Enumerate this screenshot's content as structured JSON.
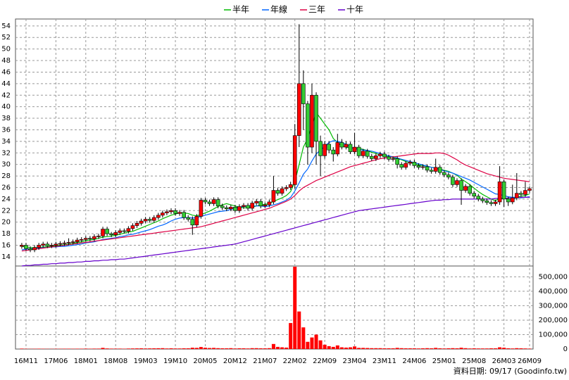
{
  "chart_data": {
    "type": "candlestick",
    "categories": [
      null,
      "16M11",
      null,
      null,
      null,
      null,
      null,
      null,
      "17M06",
      null,
      null,
      null,
      null,
      null,
      null,
      "18M01",
      null,
      null,
      null,
      null,
      null,
      null,
      "18M08",
      null,
      null,
      null,
      null,
      null,
      null,
      "19M03",
      null,
      null,
      null,
      null,
      null,
      null,
      "19M10",
      null,
      null,
      null,
      null,
      null,
      null,
      "20M05",
      null,
      null,
      null,
      null,
      null,
      null,
      "20M12",
      null,
      null,
      null,
      null,
      null,
      null,
      "21M07",
      null,
      null,
      null,
      null,
      null,
      null,
      "22M02",
      null,
      null,
      null,
      null,
      null,
      null,
      "22M09",
      null,
      null,
      null,
      null,
      null,
      null,
      "23M04",
      null,
      null,
      null,
      null,
      null,
      null,
      "23M11",
      null,
      null,
      null,
      null,
      null,
      null,
      "24M06",
      null,
      null,
      null,
      null,
      null,
      null,
      "25M01",
      null,
      null,
      null,
      null,
      null,
      null,
      "25M08",
      null,
      null,
      null,
      null,
      null,
      null,
      "26M03",
      null,
      null,
      null,
      null,
      null,
      "26M09"
    ],
    "open": [
      15.8,
      16.0,
      15.4,
      15.2,
      15.6,
      16.0,
      16.2,
      15.9,
      16.0,
      16.2,
      16.3,
      16.4,
      16.5,
      16.6,
      16.9,
      17.0,
      17.2,
      17.1,
      17.5,
      17.6,
      18.8,
      18.0,
      17.8,
      18.2,
      18.5,
      18.4,
      18.9,
      19.4,
      19.8,
      20.2,
      20.5,
      20.3,
      20.8,
      21.2,
      21.6,
      21.8,
      22.0,
      21.5,
      21.7,
      20.8,
      20.5,
      19.5,
      21.0,
      23.8,
      23.5,
      23.2,
      23.9,
      22.8,
      22.5,
      22.3,
      22.6,
      22.0,
      22.7,
      22.9,
      22.4,
      23.3,
      23.6,
      22.8,
      23.0,
      23.5,
      25.5,
      25.0,
      25.8,
      26.0,
      26.5,
      35.0,
      44.0,
      40.5,
      33.0,
      42.0,
      34.0,
      31.5,
      33.5,
      32.5,
      31.8,
      33.8,
      33.0,
      33.5,
      32.2,
      33.0,
      31.5,
      32.3,
      31.4,
      31.0,
      31.5,
      31.8,
      31.3,
      30.9,
      31.0,
      30.0,
      29.5,
      30.2,
      30.4,
      29.8,
      29.5,
      29.6,
      29.0,
      28.8,
      29.5,
      28.6,
      28.2,
      27.8,
      26.5,
      27.2,
      25.5,
      26.2,
      25.0,
      24.5,
      24.0,
      23.7,
      23.4,
      23.2,
      23.5,
      27.0,
      24.0,
      23.5,
      24.2,
      25.0,
      24.8,
      25.5
    ],
    "high": [
      16.4,
      16.4,
      15.8,
      16.0,
      16.4,
      16.6,
      16.6,
      16.4,
      16.6,
      16.7,
      16.8,
      17.2,
      17.0,
      17.3,
      17.4,
      17.6,
      17.6,
      17.9,
      18.0,
      19.2,
      19.2,
      18.3,
      18.6,
      18.9,
      18.9,
      19.3,
      19.8,
      20.2,
      20.6,
      20.9,
      20.9,
      21.2,
      21.6,
      22.0,
      22.2,
      22.4,
      22.4,
      22.1,
      22.1,
      21.2,
      21.0,
      21.4,
      24.2,
      24.2,
      23.9,
      24.3,
      24.3,
      23.2,
      22.9,
      23.0,
      23.0,
      23.1,
      23.3,
      23.3,
      23.7,
      24.0,
      24.0,
      23.4,
      23.9,
      28.0,
      25.9,
      26.2,
      26.4,
      27.0,
      37.0,
      54.3,
      46.3,
      41.0,
      44.0,
      42.5,
      35.0,
      34.0,
      34.0,
      33.0,
      35.3,
      34.4,
      34.0,
      33.9,
      35.5,
      33.4,
      32.7,
      32.7,
      31.8,
      31.9,
      32.2,
      32.2,
      31.7,
      31.4,
      31.4,
      30.4,
      30.6,
      30.8,
      30.8,
      30.2,
      30.0,
      30.0,
      29.4,
      31.0,
      29.9,
      29.0,
      28.6,
      28.2,
      27.6,
      27.6,
      26.6,
      26.6,
      25.4,
      24.9,
      24.4,
      24.1,
      23.8,
      23.9,
      29.7,
      27.4,
      24.4,
      26.5,
      28.5,
      25.4,
      27.0,
      26.2
    ],
    "low": [
      15.4,
      15.0,
      14.8,
      14.8,
      15.2,
      15.6,
      15.5,
      15.5,
      15.6,
      15.8,
      15.9,
      16.0,
      16.1,
      16.2,
      16.5,
      16.6,
      16.7,
      16.7,
      17.1,
      17.2,
      17.6,
      17.4,
      17.4,
      17.8,
      18.0,
      18.0,
      18.5,
      19.0,
      19.4,
      19.8,
      19.9,
      19.9,
      20.4,
      20.8,
      21.2,
      21.4,
      21.1,
      21.1,
      20.4,
      20.1,
      17.8,
      19.1,
      20.6,
      23.1,
      22.8,
      22.8,
      22.4,
      22.1,
      21.9,
      21.9,
      21.6,
      21.6,
      22.3,
      22.0,
      22.0,
      22.9,
      22.4,
      22.4,
      22.6,
      23.1,
      24.6,
      24.6,
      25.4,
      25.6,
      25.8,
      33.0,
      36.0,
      30.0,
      32.0,
      30.0,
      28.0,
      31.0,
      32.0,
      30.5,
      31.4,
      32.6,
      32.6,
      31.8,
      31.8,
      31.1,
      31.1,
      31.0,
      30.6,
      30.6,
      31.1,
      30.9,
      30.5,
      30.5,
      29.3,
      29.1,
      29.1,
      29.8,
      29.4,
      29.1,
      29.1,
      28.6,
      28.4,
      28.4,
      28.2,
      27.8,
      27.4,
      26.1,
      26.1,
      23.0,
      25.1,
      24.6,
      24.1,
      23.6,
      23.3,
      23.0,
      22.8,
      22.8,
      23.0,
      22.6,
      22.8,
      23.1,
      23.8,
      24.4,
      24.4,
      25.1
    ],
    "close": [
      16.0,
      15.4,
      15.2,
      15.6,
      16.0,
      16.2,
      15.9,
      16.0,
      16.2,
      16.3,
      16.4,
      16.5,
      16.6,
      16.9,
      17.0,
      17.2,
      17.1,
      17.5,
      17.6,
      18.8,
      18.0,
      17.8,
      18.2,
      18.5,
      18.4,
      18.9,
      19.4,
      19.8,
      20.2,
      20.5,
      20.3,
      20.8,
      21.2,
      21.6,
      21.8,
      22.0,
      21.5,
      21.7,
      20.8,
      20.5,
      19.5,
      21.0,
      23.8,
      23.5,
      23.2,
      23.9,
      22.8,
      22.5,
      22.3,
      22.6,
      22.0,
      22.7,
      22.9,
      22.4,
      23.3,
      23.6,
      22.8,
      23.0,
      23.5,
      25.5,
      25.0,
      25.8,
      26.0,
      26.5,
      35.0,
      44.0,
      40.5,
      33.0,
      42.0,
      34.0,
      31.5,
      33.5,
      32.5,
      31.8,
      33.8,
      33.0,
      33.5,
      32.2,
      33.0,
      31.5,
      32.3,
      31.4,
      31.0,
      31.5,
      31.8,
      31.3,
      30.9,
      31.0,
      30.0,
      29.5,
      30.2,
      30.4,
      29.8,
      29.5,
      29.6,
      29.0,
      28.8,
      29.5,
      28.6,
      28.2,
      27.8,
      26.5,
      27.2,
      25.5,
      26.2,
      25.0,
      24.5,
      24.0,
      23.7,
      23.4,
      23.2,
      23.5,
      27.0,
      24.0,
      23.5,
      24.2,
      25.0,
      24.8,
      25.5,
      25.8
    ],
    "up_color": "#ff0000",
    "down_color": "#33cc33",
    "ylim": [
      12.4,
      55.2
    ],
    "yticks": [
      14,
      16,
      18,
      20,
      22,
      24,
      26,
      28,
      30,
      32,
      34,
      36,
      38,
      40,
      42,
      44,
      46,
      48,
      50,
      52,
      54
    ],
    "grid": true,
    "series": [
      {
        "name": "半年",
        "color": "#00bb00",
        "values": [
          15.8,
          15.7,
          15.6,
          15.6,
          15.6,
          15.7,
          15.7,
          15.8,
          15.9,
          16.0,
          16.1,
          16.2,
          16.3,
          16.5,
          16.6,
          16.8,
          16.9,
          17.0,
          17.2,
          17.4,
          17.5,
          17.6,
          17.7,
          17.9,
          18.1,
          18.3,
          18.4,
          18.7,
          19.0,
          19.3,
          19.6,
          19.9,
          20.2,
          20.6,
          20.9,
          21.2,
          21.4,
          21.6,
          21.6,
          21.5,
          21.2,
          21.1,
          21.3,
          21.6,
          21.9,
          22.3,
          22.7,
          23.0,
          23.2,
          23.0,
          22.8,
          22.6,
          22.5,
          22.5,
          22.6,
          22.8,
          23.0,
          23.1,
          23.2,
          23.6,
          23.9,
          24.2,
          24.6,
          25.3,
          27.0,
          30.0,
          33.0,
          34.5,
          36.7,
          39.0,
          38.0,
          37.0,
          36.0,
          34.5,
          33.8,
          33.2,
          33.0,
          32.8,
          32.9,
          32.8,
          32.6,
          32.4,
          32.1,
          31.9,
          31.6,
          31.5,
          31.3,
          31.2,
          31.0,
          30.8,
          30.5,
          30.3,
          30.1,
          29.9,
          29.8,
          29.7,
          29.5,
          29.4,
          29.2,
          29.0,
          28.8,
          28.5,
          28.1,
          27.5,
          27.0,
          26.5,
          25.9,
          25.3,
          24.8,
          24.4,
          24.0,
          23.7,
          24.2,
          24.1,
          24.0,
          24.0,
          24.3,
          24.5,
          24.6,
          24.9
        ]
      },
      {
        "name": "年線",
        "color": "#0066ff",
        "values": [
          15.2,
          15.3,
          15.4,
          15.4,
          15.5,
          15.6,
          15.6,
          15.7,
          15.7,
          15.8,
          15.8,
          15.9,
          16.0,
          16.1,
          16.2,
          16.4,
          16.5,
          16.6,
          16.8,
          17.0,
          17.1,
          17.2,
          17.3,
          17.5,
          17.6,
          17.8,
          17.9,
          18.1,
          18.3,
          18.5,
          18.7,
          19.0,
          19.3,
          19.5,
          19.8,
          20.2,
          20.5,
          20.7,
          20.8,
          20.8,
          20.7,
          20.8,
          21.0,
          21.2,
          21.4,
          21.6,
          21.8,
          21.9,
          22.0,
          22.2,
          22.4,
          22.6,
          22.7,
          22.8,
          22.8,
          22.8,
          22.8,
          22.7,
          22.8,
          23.0,
          23.2,
          23.5,
          23.8,
          24.3,
          25.4,
          26.8,
          28.3,
          29.2,
          30.6,
          31.8,
          32.5,
          33.1,
          33.8,
          34.1,
          34.0,
          33.8,
          33.5,
          33.0,
          32.7,
          32.6,
          32.5,
          32.4,
          32.3,
          32.1,
          31.9,
          31.7,
          31.5,
          31.3,
          31.1,
          30.9,
          30.7,
          30.5,
          30.3,
          30.1,
          29.9,
          29.7,
          29.5,
          29.3,
          29.1,
          28.9,
          28.7,
          28.5,
          28.2,
          27.9,
          27.6,
          27.3,
          26.9,
          26.5,
          26.1,
          25.7,
          25.3,
          24.9,
          24.8,
          24.6,
          24.4,
          24.3,
          24.3,
          24.2,
          24.3,
          24.4
        ]
      },
      {
        "name": "三年",
        "color": "#dd0044",
        "values": [
          15.0,
          15.1,
          15.2,
          15.3,
          15.4,
          15.5,
          15.6,
          15.7,
          15.8,
          15.9,
          16.0,
          16.1,
          16.2,
          16.3,
          16.4,
          16.5,
          16.6,
          16.7,
          16.8,
          16.9,
          17.0,
          17.1,
          17.2,
          17.3,
          17.4,
          17.5,
          17.6,
          17.7,
          17.8,
          17.9,
          18.0,
          18.1,
          18.2,
          18.3,
          18.4,
          18.5,
          18.6,
          18.7,
          18.8,
          18.9,
          19.0,
          19.1,
          19.2,
          19.4,
          19.6,
          19.8,
          20.0,
          20.2,
          20.4,
          20.6,
          20.8,
          21.0,
          21.2,
          21.4,
          21.6,
          21.8,
          22.0,
          22.2,
          22.4,
          22.7,
          23.0,
          23.3,
          23.6,
          24.0,
          24.6,
          25.4,
          26.0,
          26.4,
          26.8,
          27.2,
          27.5,
          27.8,
          28.1,
          28.4,
          28.7,
          29.0,
          29.3,
          29.6,
          29.8,
          30.0,
          30.2,
          30.4,
          30.6,
          30.8,
          31.0,
          31.1,
          31.2,
          31.3,
          31.4,
          31.5,
          31.6,
          31.7,
          31.8,
          31.9,
          31.9,
          31.9,
          31.9,
          32.0,
          32.0,
          31.9,
          31.6,
          31.2,
          30.8,
          30.3,
          29.9,
          29.6,
          29.3,
          29.0,
          28.7,
          28.4,
          28.2,
          28.0,
          27.8,
          27.6,
          27.5,
          27.4,
          27.3,
          27.2,
          27.1,
          27.0
        ]
      },
      {
        "name": "十年",
        "color": "#6600cc",
        "values": [
          12.4,
          12.5,
          12.5,
          12.6,
          12.6,
          12.7,
          12.7,
          12.8,
          12.8,
          12.9,
          12.9,
          13.0,
          13.0,
          13.1,
          13.1,
          13.2,
          13.2,
          13.3,
          13.3,
          13.4,
          13.4,
          13.5,
          13.5,
          13.6,
          13.6,
          13.7,
          13.8,
          13.9,
          14.0,
          14.1,
          14.2,
          14.3,
          14.4,
          14.5,
          14.6,
          14.7,
          14.8,
          14.9,
          15.0,
          15.1,
          15.2,
          15.3,
          15.4,
          15.5,
          15.6,
          15.7,
          15.8,
          15.9,
          16.0,
          16.1,
          16.2,
          16.4,
          16.6,
          16.8,
          17.0,
          17.2,
          17.4,
          17.6,
          17.8,
          18.0,
          18.2,
          18.4,
          18.6,
          18.8,
          19.0,
          19.2,
          19.4,
          19.6,
          19.8,
          20.0,
          20.2,
          20.4,
          20.6,
          20.8,
          21.0,
          21.2,
          21.4,
          21.6,
          21.8,
          22.0,
          22.1,
          22.2,
          22.3,
          22.4,
          22.5,
          22.6,
          22.7,
          22.8,
          22.9,
          23.0,
          23.1,
          23.2,
          23.3,
          23.4,
          23.5,
          23.6,
          23.7,
          23.8,
          23.8,
          23.9,
          23.9,
          24.0,
          24.0,
          24.0,
          24.0,
          24.0,
          24.0,
          24.0,
          24.0,
          24.0,
          24.0,
          24.1,
          24.1,
          24.1,
          24.2,
          24.2,
          24.2,
          24.3,
          24.3,
          24.3
        ]
      }
    ],
    "volume": {
      "color": "#ff0000",
      "values": [
        3000,
        2000,
        1500,
        2000,
        2500,
        2000,
        1500,
        1500,
        2000,
        2000,
        2500,
        2500,
        2000,
        2500,
        2500,
        3000,
        2500,
        3000,
        3000,
        8000,
        4000,
        3000,
        3000,
        3000,
        2500,
        3500,
        4000,
        4500,
        5000,
        4000,
        4500,
        5000,
        5500,
        6000,
        4000,
        5000,
        4000,
        4000,
        5000,
        5000,
        9000,
        8000,
        14000,
        9000,
        7000,
        8000,
        6000,
        5000,
        5000,
        6000,
        4000,
        5000,
        5000,
        4000,
        6000,
        6000,
        5000,
        5000,
        6000,
        35000,
        15000,
        12000,
        10000,
        180000,
        570000,
        260000,
        150000,
        50000,
        80000,
        100000,
        60000,
        30000,
        20000,
        15000,
        25000,
        12000,
        10000,
        12000,
        18000,
        8000,
        8000,
        7000,
        6000,
        6000,
        6000,
        5000,
        5000,
        5000,
        8000,
        6000,
        5000,
        5000,
        5000,
        4000,
        5000,
        6000,
        5000,
        8000,
        5000,
        4000,
        5000,
        6000,
        5000,
        9000,
        6000,
        4000,
        5000,
        4000,
        4000,
        4000,
        5000,
        5000,
        12000,
        9000,
        5000,
        4000,
        6000,
        5000,
        4000,
        3000
      ],
      "ylim": [
        0,
        575000
      ],
      "yticks": [
        0,
        {
          "value": 100000,
          "label": "100,000"
        },
        {
          "value": 200000,
          "label": "200,000"
        },
        {
          "value": 300000,
          "label": "300,000"
        },
        {
          "value": 400000,
          "label": "400,000"
        },
        {
          "value": 500000,
          "label": "500,000"
        }
      ]
    },
    "footnote": "資料日期: 09/17 (Goodinfo.tw)"
  }
}
